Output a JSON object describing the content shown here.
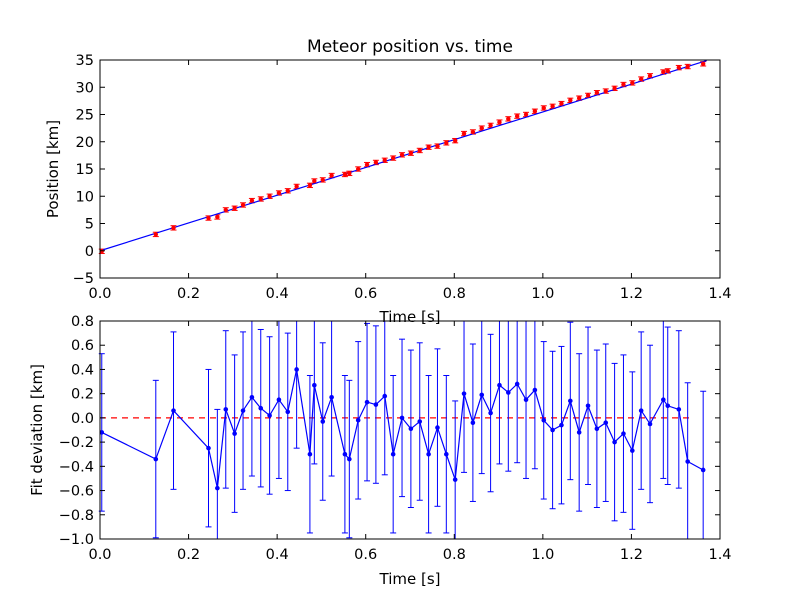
{
  "chart_data": [
    {
      "type": "scatter",
      "title": "Meteor position vs. time",
      "xlabel": "Time [s]",
      "ylabel": "Position [km]",
      "xlim": [
        0.0,
        1.4
      ],
      "ylim": [
        -5,
        35
      ],
      "xticks": [
        "0.0",
        "0.2",
        "0.4",
        "0.6",
        "0.8",
        "1.0",
        "1.2",
        "1.4"
      ],
      "yticks": [
        "−5",
        "0",
        "5",
        "10",
        "15",
        "20",
        "25",
        "30",
        "35"
      ],
      "grid": false,
      "legend": "none",
      "colors": {
        "points": "#ff0000",
        "fit_line": "#0000ff"
      },
      "series": [
        {
          "kind": "points-with-errorbars",
          "error": 0.4,
          "x": [
            0.004,
            0.126,
            0.166,
            0.245,
            0.265,
            0.284,
            0.304,
            0.323,
            0.343,
            0.363,
            0.383,
            0.404,
            0.424,
            0.444,
            0.474,
            0.484,
            0.503,
            0.523,
            0.553,
            0.563,
            0.583,
            0.603,
            0.623,
            0.643,
            0.662,
            0.682,
            0.702,
            0.722,
            0.742,
            0.762,
            0.782,
            0.802,
            0.822,
            0.842,
            0.862,
            0.882,
            0.902,
            0.922,
            0.942,
            0.962,
            0.982,
            1.002,
            1.022,
            1.042,
            1.062,
            1.082,
            1.102,
            1.122,
            1.142,
            1.162,
            1.182,
            1.202,
            1.222,
            1.242,
            1.272,
            1.282,
            1.307,
            1.327,
            1.362
          ],
          "y": [
            -0.1,
            3.0,
            4.2,
            6.0,
            6.2,
            7.5,
            7.8,
            8.4,
            9.2,
            9.5,
            10.0,
            10.6,
            11.0,
            11.8,
            12.0,
            12.8,
            13.0,
            13.8,
            14.0,
            14.2,
            15.0,
            15.8,
            16.2,
            16.6,
            17.0,
            17.6,
            17.9,
            18.4,
            19.0,
            19.2,
            19.8,
            20.2,
            21.5,
            21.8,
            22.5,
            23.0,
            23.6,
            24.2,
            24.7,
            25.0,
            25.6,
            26.2,
            26.5,
            27.0,
            27.6,
            28.0,
            28.5,
            29.0,
            29.3,
            29.8,
            30.5,
            30.8,
            31.5,
            32.1,
            32.8,
            33.0,
            33.6,
            33.8,
            34.3
          ]
        },
        {
          "kind": "line",
          "x": [
            0.0,
            1.37
          ],
          "y": [
            0.0,
            34.9
          ]
        }
      ]
    },
    {
      "type": "line",
      "title": "",
      "xlabel": "Time [s]",
      "ylabel": "Fit deviation [km]",
      "xlim": [
        0.0,
        1.4
      ],
      "ylim": [
        -1.0,
        0.8
      ],
      "xticks": [
        "0.0",
        "0.2",
        "0.4",
        "0.6",
        "0.8",
        "1.0",
        "1.2",
        "1.4"
      ],
      "yticks": [
        "−1.0",
        "−0.8",
        "−0.6",
        "−0.4",
        "−0.2",
        "0.0",
        "0.2",
        "0.4",
        "0.6",
        "0.8"
      ],
      "grid": false,
      "legend": "none",
      "colors": {
        "series": "#0000ff",
        "zero_line": "#ff0000"
      },
      "reference_line": {
        "y": 0.0,
        "style": "dashed",
        "x": [
          0.0,
          1.33
        ]
      },
      "series": [
        {
          "kind": "line-markers-errorbars",
          "error": 0.65,
          "x": [
            0.004,
            0.126,
            0.166,
            0.245,
            0.265,
            0.284,
            0.304,
            0.323,
            0.343,
            0.363,
            0.383,
            0.404,
            0.424,
            0.444,
            0.474,
            0.484,
            0.503,
            0.523,
            0.553,
            0.563,
            0.583,
            0.603,
            0.623,
            0.643,
            0.662,
            0.682,
            0.702,
            0.722,
            0.742,
            0.762,
            0.782,
            0.802,
            0.822,
            0.842,
            0.862,
            0.882,
            0.902,
            0.922,
            0.942,
            0.962,
            0.982,
            1.002,
            1.022,
            1.042,
            1.062,
            1.082,
            1.102,
            1.122,
            1.142,
            1.162,
            1.182,
            1.202,
            1.222,
            1.242,
            1.272,
            1.282,
            1.307,
            1.327,
            1.362
          ],
          "y": [
            -0.12,
            -0.34,
            0.06,
            -0.25,
            -0.58,
            0.07,
            -0.13,
            0.06,
            0.17,
            0.08,
            0.02,
            0.15,
            0.05,
            0.4,
            -0.3,
            0.27,
            -0.03,
            0.17,
            -0.3,
            -0.34,
            -0.02,
            0.13,
            0.11,
            0.18,
            -0.3,
            0.0,
            -0.09,
            -0.03,
            -0.3,
            -0.08,
            -0.3,
            -0.51,
            0.2,
            -0.04,
            0.19,
            0.04,
            0.27,
            0.21,
            0.28,
            0.15,
            0.23,
            -0.02,
            -0.1,
            -0.06,
            0.14,
            -0.12,
            0.1,
            -0.09,
            -0.04,
            -0.2,
            -0.13,
            -0.27,
            0.06,
            -0.05,
            0.15,
            0.1,
            0.07,
            -0.36,
            -0.43
          ]
        }
      ]
    }
  ]
}
